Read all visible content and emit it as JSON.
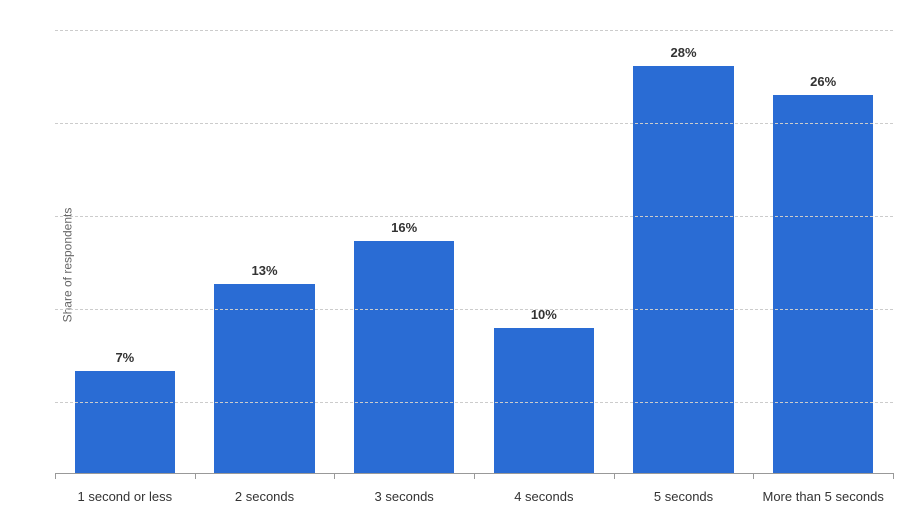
{
  "chart": {
    "type": "bar",
    "y_axis_label": "Share of respondents",
    "categories": [
      "1 second or less",
      "2 seconds",
      "3 seconds",
      "4 seconds",
      "5 seconds",
      "More than 5 seconds"
    ],
    "values": [
      7,
      13,
      16,
      10,
      28,
      26
    ],
    "value_labels": [
      "7%",
      "13%",
      "16%",
      "10%",
      "28%",
      "26%"
    ],
    "bar_color": "#2a6cd4",
    "background_color": "#ffffff",
    "grid_color": "#cccccc",
    "axis_color": "#999999",
    "text_color": "#333333",
    "label_color": "#666666",
    "ylim": [
      0,
      32
    ],
    "gridline_positions": [
      4.8,
      11.2,
      17.6,
      24,
      30.4
    ],
    "label_fontsize": 12,
    "value_fontsize": 13,
    "bar_width_ratio": 0.72
  }
}
